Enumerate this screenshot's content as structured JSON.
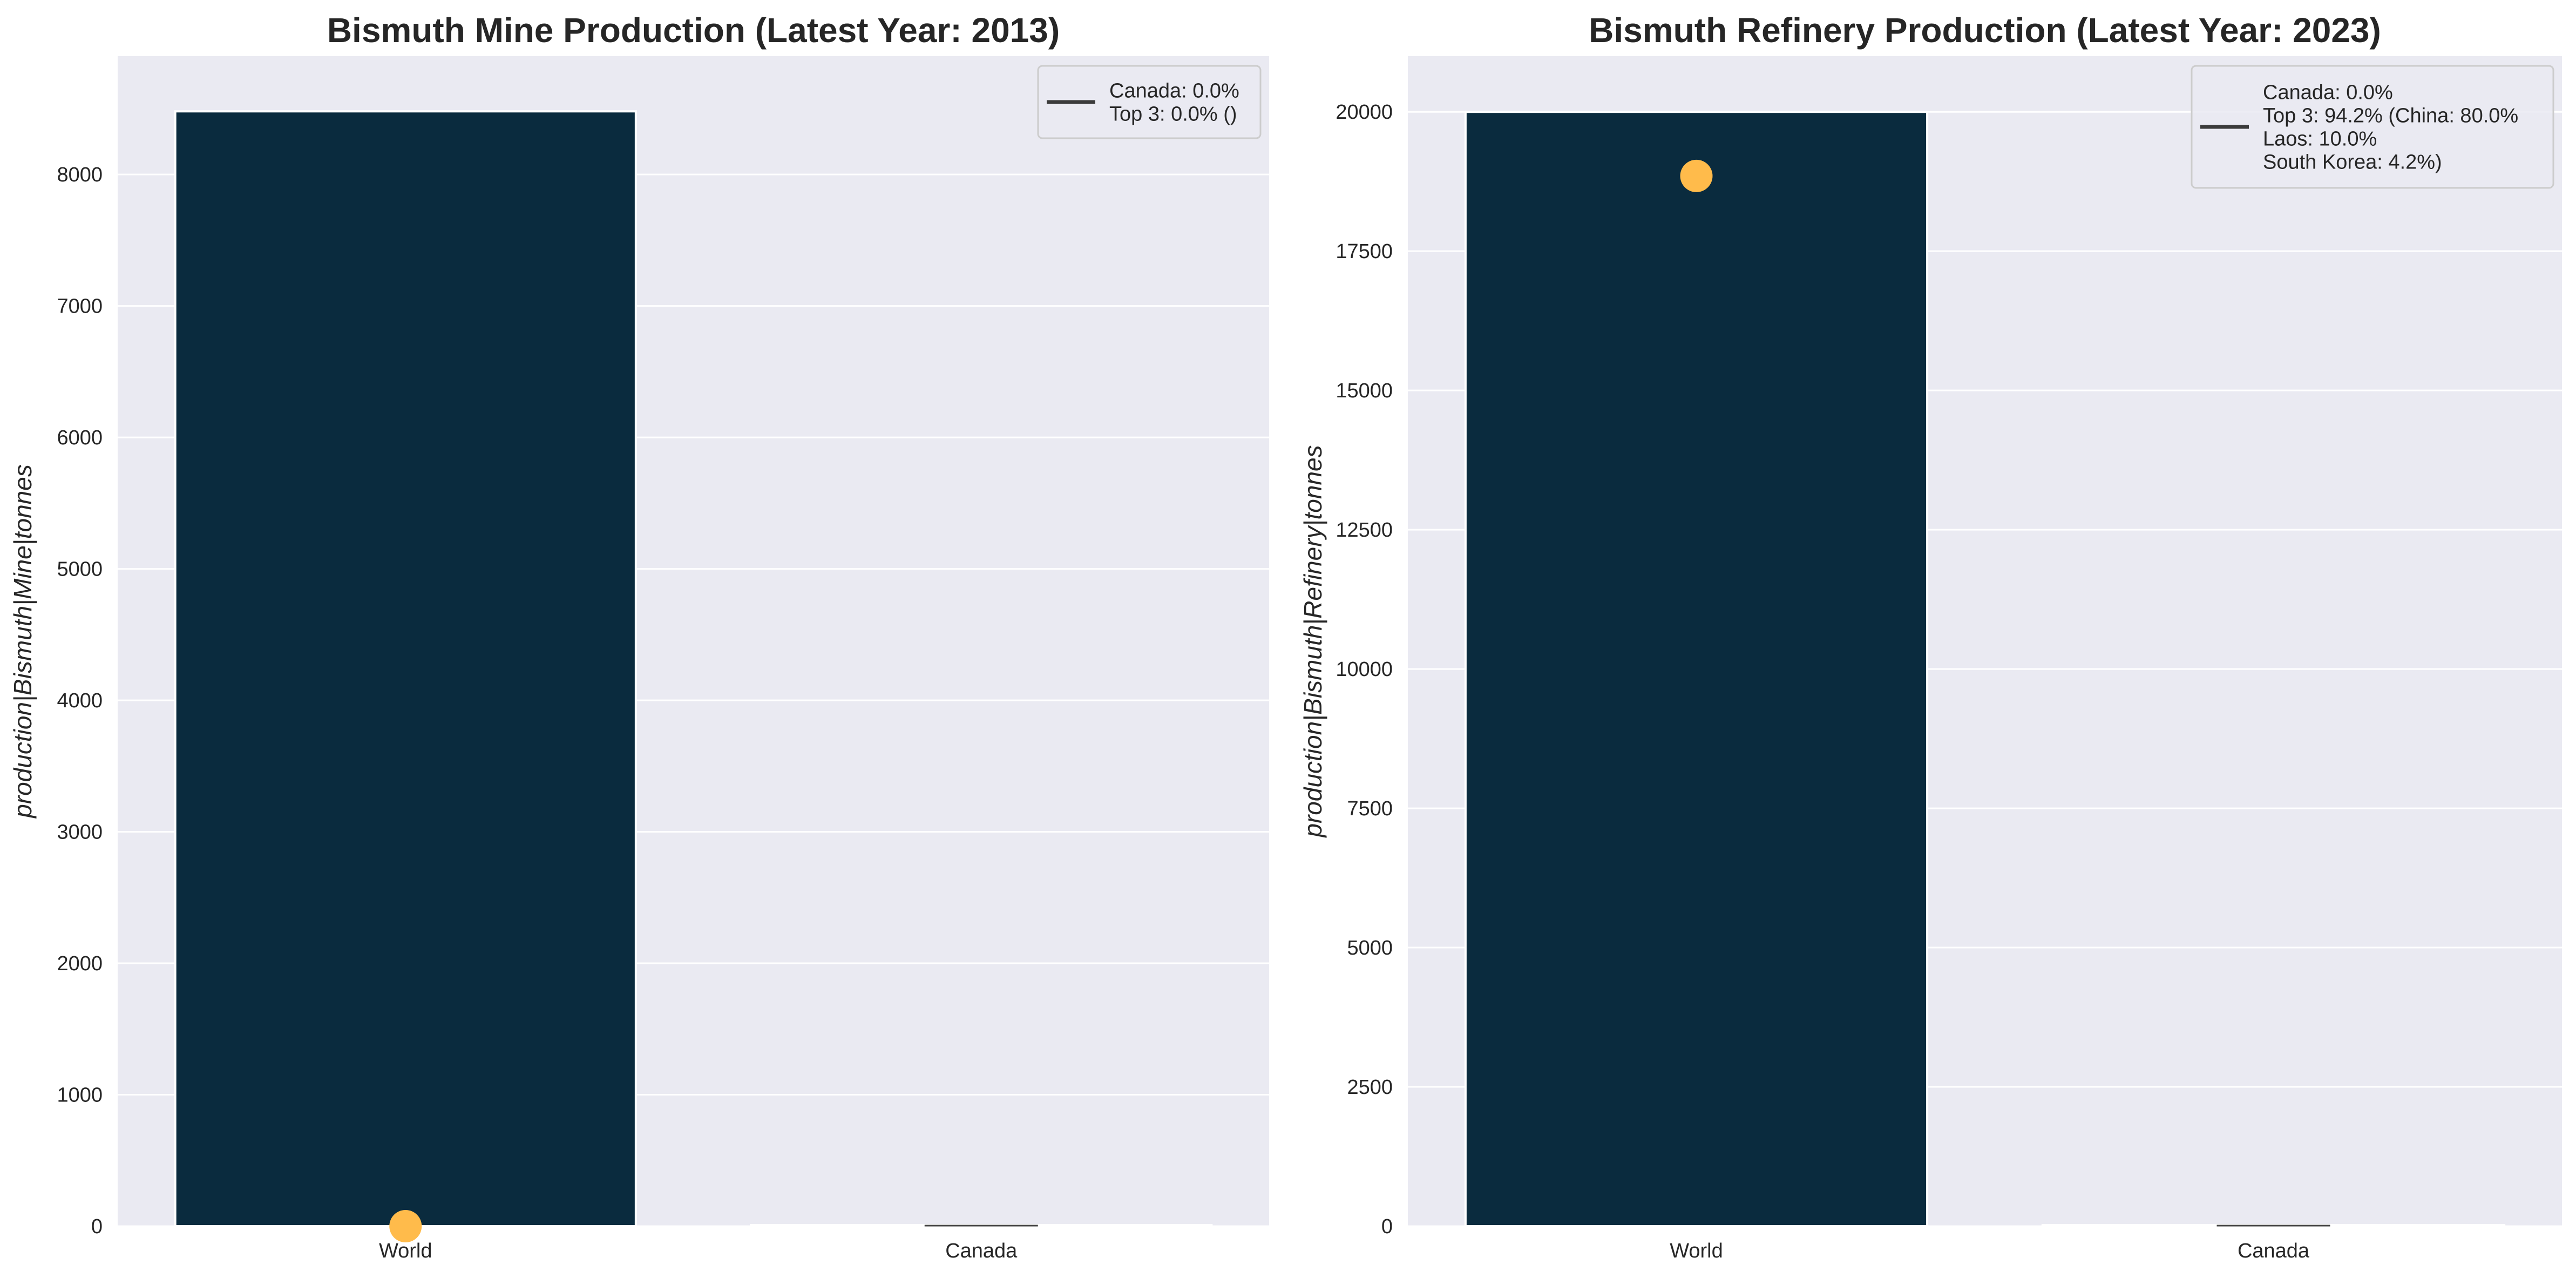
{
  "chart_data": [
    {
      "type": "bar",
      "title": "Bismuth Mine Production (Latest Year: 2013)",
      "xlabel": "",
      "ylabel": "production|Bismuth|Mine|tonnes",
      "categories": [
        "World",
        "Canada"
      ],
      "values": [
        8480,
        0
      ],
      "ylim": [
        0,
        8900
      ],
      "yticks": [
        0,
        1000,
        2000,
        3000,
        4000,
        5000,
        6000,
        7000,
        8000
      ],
      "marker": {
        "category": "World",
        "value": 0
      },
      "legend": {
        "position": "top-right",
        "lines": [
          "Canada: 0.0%",
          "Top 3: 0.0% ()"
        ]
      },
      "grid": true,
      "colors": {
        "bar": "#0a2b3e",
        "marker": "#ffbb4b",
        "background": "#eaeaf2",
        "legend_line": "#3b3b3b"
      }
    },
    {
      "type": "bar",
      "title": "Bismuth Refinery Production (Latest Year: 2023)",
      "xlabel": "",
      "ylabel": "production|Bismuth|Refinery|tonnes",
      "categories": [
        "World",
        "Canada"
      ],
      "values": [
        20000,
        0
      ],
      "ylim": [
        0,
        21000
      ],
      "yticks": [
        0,
        2500,
        5000,
        7500,
        10000,
        12500,
        15000,
        17500,
        20000
      ],
      "marker": {
        "category": "World",
        "value": 18850
      },
      "legend": {
        "position": "top-right",
        "lines": [
          "Canada: 0.0%",
          "Top 3: 94.2% (China: 80.0%",
          "Laos: 10.0%",
          "South Korea: 4.2%)"
        ]
      },
      "grid": true,
      "colors": {
        "bar": "#0a2b3e",
        "marker": "#ffbb4b",
        "background": "#eaeaf2",
        "legend_line": "#3b3b3b"
      }
    }
  ]
}
